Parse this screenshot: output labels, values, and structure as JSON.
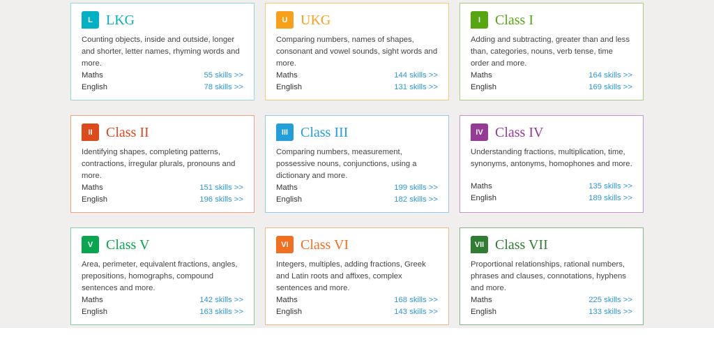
{
  "page": {
    "background": "#f0efee",
    "link_color": "#2b98d6"
  },
  "grades": [
    {
      "badge": "L",
      "title": "LKG",
      "color": "#00b1c3",
      "border_color": "#8ed8e0",
      "description": "Counting objects, inside and outside, longer and shorter, letter names, rhyming words and more.",
      "rows": [
        {
          "subject": "Maths",
          "skills": "55 skills >>"
        },
        {
          "subject": "English",
          "skills": "78 skills >>"
        }
      ]
    },
    {
      "badge": "U",
      "title": "UKG",
      "color": "#f9a01b",
      "border_color": "#fbc77f",
      "description": "Comparing numbers, names of shapes, consonant and vowel sounds, sight words and more.",
      "rows": [
        {
          "subject": "Maths",
          "skills": "144 skills >>"
        },
        {
          "subject": "English",
          "skills": "131 skills >>"
        }
      ]
    },
    {
      "badge": "I",
      "title": "Class I",
      "color": "#57a510",
      "border_color": "#a9cf7c",
      "description": "Adding and subtracting, greater than and less than, categories, nouns, verb tense, time order and more.",
      "rows": [
        {
          "subject": "Maths",
          "skills": "164 skills >>"
        },
        {
          "subject": "English",
          "skills": "169 skills >>"
        }
      ]
    },
    {
      "badge": "II",
      "title": "Class II",
      "color": "#dd4a1b",
      "border_color": "#efa183",
      "description": "Identifying shapes, completing patterns, contractions, irregular plurals, pronouns and more.",
      "rows": [
        {
          "subject": "Maths",
          "skills": "151 skills >>"
        },
        {
          "subject": "English",
          "skills": "196 skills >>"
        }
      ]
    },
    {
      "badge": "III",
      "title": "Class III",
      "color": "#229fd9",
      "border_color": "#8fcdeb",
      "description": "Comparing numbers, measurement, possessive nouns, conjunctions, using a dictionary and more.",
      "rows": [
        {
          "subject": "Maths",
          "skills": "199 skills >>"
        },
        {
          "subject": "English",
          "skills": "182 skills >>"
        }
      ]
    },
    {
      "badge": "IV",
      "title": "Class IV",
      "color": "#963a96",
      "border_color": "#c694c8",
      "description": "Understanding fractions, multiplication, time, synonyms, antonyms, homophones and more.",
      "rows": [
        {
          "subject": "Maths",
          "skills": "135 skills >>"
        },
        {
          "subject": "English",
          "skills": "189 skills >>"
        }
      ]
    },
    {
      "badge": "V",
      "title": "Class V",
      "color": "#0aa550",
      "border_color": "#7fd0a8",
      "description": "Area, perimeter, equivalent fractions, angles, prepositions, homographs, compound sentences and more.",
      "rows": [
        {
          "subject": "Maths",
          "skills": "142 skills >>"
        },
        {
          "subject": "English",
          "skills": "163 skills >>"
        }
      ]
    },
    {
      "badge": "VI",
      "title": "Class VI",
      "color": "#f26f21",
      "border_color": "#f7b488",
      "description": "Integers, multiples, adding fractions, Greek and Latin roots and affixes, complex sentences and more.",
      "rows": [
        {
          "subject": "Maths",
          "skills": "168 skills >>"
        },
        {
          "subject": "English",
          "skills": "143 skills >>"
        }
      ]
    },
    {
      "badge": "VII",
      "title": "Class VII",
      "color": "#2e7d32",
      "border_color": "#85b787",
      "description": "Proportional relationships, rational numbers, phrases and clauses, connotations, hyphens and more.",
      "rows": [
        {
          "subject": "Maths",
          "skills": "225 skills >>"
        },
        {
          "subject": "English",
          "skills": "133 skills >>"
        }
      ]
    }
  ]
}
